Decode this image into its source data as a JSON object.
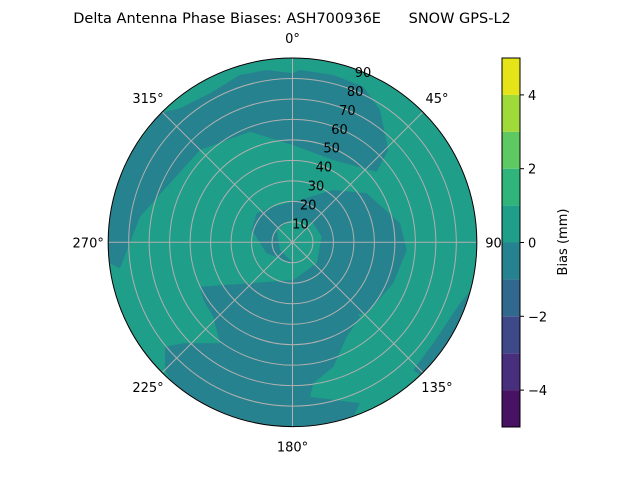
{
  "chart_data": {
    "type": "heatmap",
    "projection": "polar",
    "title": "Delta Antenna Phase Biases: ASH700936E      SNOW GPS-L2",
    "angular_ticks": [
      "0°",
      "45°",
      "90°",
      "135°",
      "180°",
      "225°",
      "270°",
      "315°"
    ],
    "angular_tick_values": [
      0,
      45,
      90,
      135,
      180,
      225,
      270,
      315
    ],
    "radial_ticks": [
      "10",
      "20",
      "30",
      "40",
      "50",
      "60",
      "70",
      "80",
      "90"
    ],
    "radial_tick_values": [
      10,
      20,
      30,
      40,
      50,
      60,
      70,
      80,
      90
    ],
    "radial_range": [
      0,
      90
    ],
    "grid": true,
    "colorbar": {
      "label": "Bias (mm)",
      "range": [
        -5,
        5
      ],
      "levels": [
        -5,
        -4,
        -3,
        -2,
        -1,
        0,
        1,
        2,
        3,
        4,
        5
      ],
      "ticks": [
        "−4",
        "−2",
        "0",
        "2",
        "4"
      ],
      "tick_values": [
        -4,
        -2,
        0,
        2,
        4
      ],
      "colors": [
        "#471164",
        "#472f7d",
        "#3e4989",
        "#31688e",
        "#26828e",
        "#1f9e89",
        "#2fb47c",
        "#5ec962",
        "#a0da39",
        "#e5e419"
      ],
      "placement": "right"
    },
    "visible_levels": [
      {
        "range": [
          -1,
          0
        ],
        "color": "#26828e"
      },
      {
        "range": [
          0,
          1
        ],
        "color": "#1f9e89"
      }
    ]
  }
}
